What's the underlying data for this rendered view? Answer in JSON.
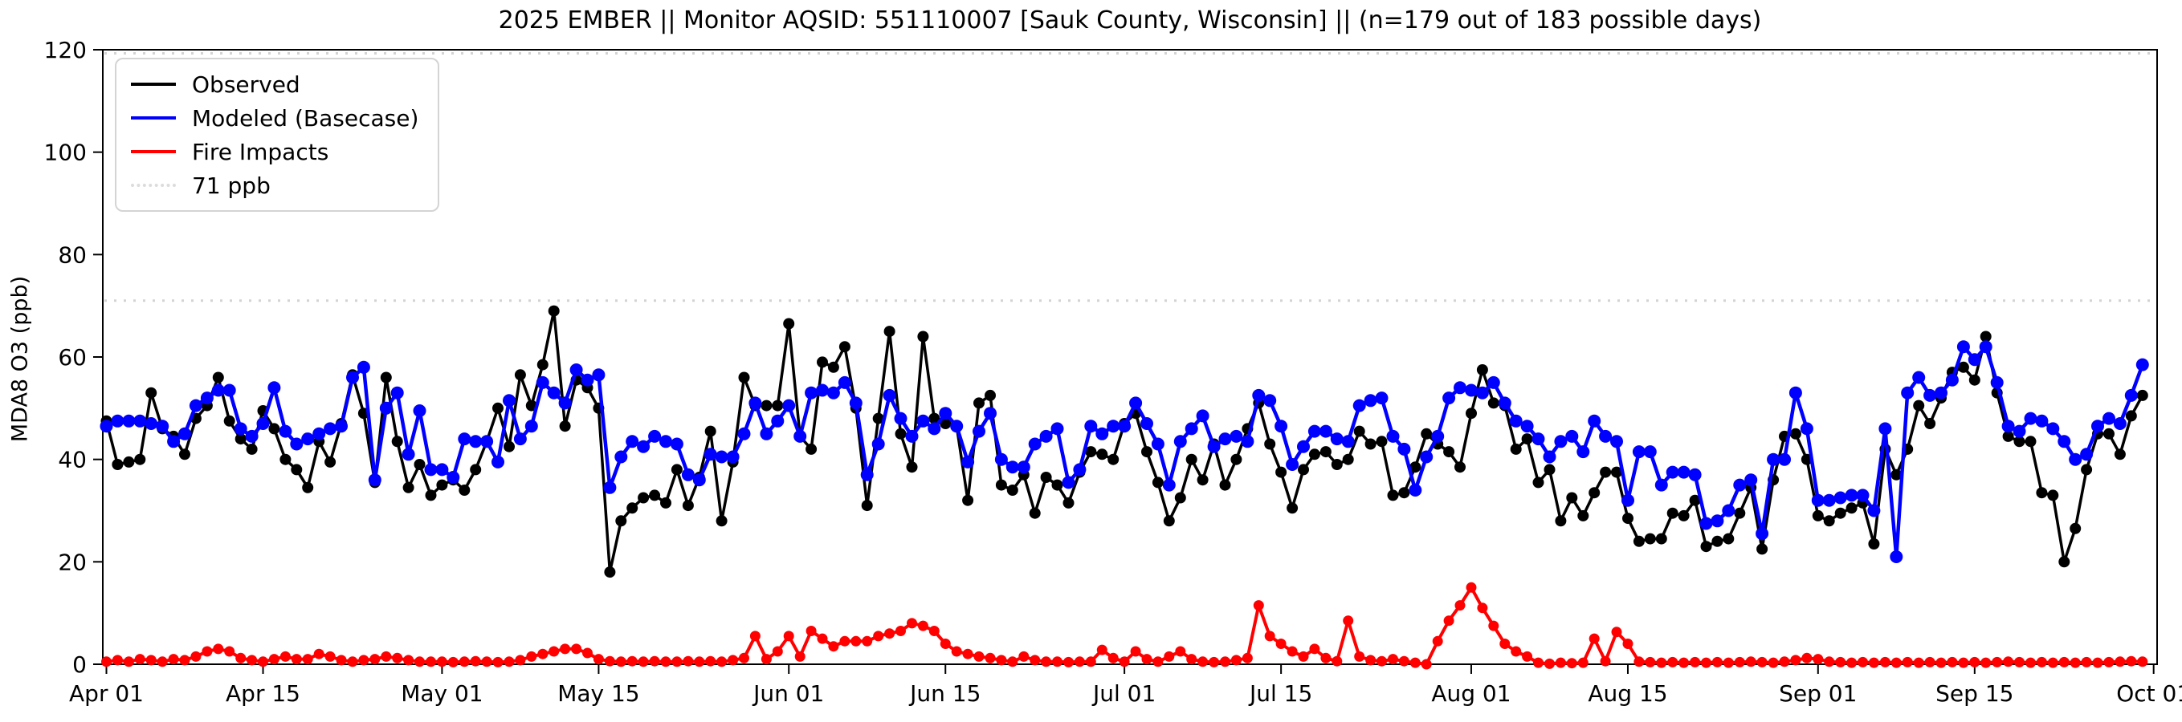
{
  "title": "2025 EMBER || Monitor AQSID: 551110007 [Sauk County, Wisconsin] || (n=179 out of 183 possible days)",
  "y_axis": {
    "label": "MDA8 O3 (ppb)",
    "ticks": [
      0,
      20,
      40,
      60,
      80,
      100,
      120
    ],
    "min": 0,
    "max": 120
  },
  "x_axis": {
    "tick_labels": [
      "Apr 01",
      "Apr 15",
      "May 01",
      "May 15",
      "Jun 01",
      "Jun 15",
      "Jul 01",
      "Jul 15",
      "Aug 01",
      "Aug 15",
      "Sep 01",
      "Sep 15",
      "Oct 01"
    ],
    "tick_days": [
      0,
      14,
      30,
      44,
      61,
      75,
      91,
      105,
      122,
      136,
      153,
      167,
      183
    ]
  },
  "legend": [
    {
      "label": "Observed",
      "color": "#000000",
      "style": "solid"
    },
    {
      "label": "Modeled (Basecase)",
      "color": "#0000ff",
      "style": "solid"
    },
    {
      "label": "Fire Impacts",
      "color": "#ff0000",
      "style": "solid"
    },
    {
      "label": "71 ppb",
      "color": "#dcdcdc",
      "style": "dotted"
    }
  ],
  "chart_data": {
    "type": "line",
    "title": "2025 EMBER || Monitor AQSID: 551110007 [Sauk County, Wisconsin] || (n=179 out of 183 possible days)",
    "xlabel": "",
    "ylabel": "MDA8 O3 (ppb)",
    "ylim": [
      0,
      120
    ],
    "x_start": "Apr 01",
    "x_end": "Sep 30",
    "n_days": 183,
    "n_observed": 179,
    "n_possible": 183,
    "grid": false,
    "legend_position": "upper-left",
    "reference_lines": [
      {
        "value": 71,
        "color": "#d3d3d3",
        "style": "dotted"
      },
      {
        "value": 120,
        "color": "#d3d3d3",
        "style": "dotted"
      }
    ],
    "series": [
      {
        "name": "Observed",
        "color": "#000000",
        "marker": "circle",
        "values": [
          47.5,
          39,
          39.5,
          40,
          53,
          46,
          44.5,
          41,
          48,
          50.5,
          56,
          47.5,
          44,
          42,
          49.5,
          46,
          40,
          38,
          34.5,
          43.5,
          39.5,
          47,
          56.5,
          49,
          35.5,
          56,
          43.5,
          34.5,
          39,
          33,
          35,
          36,
          34,
          38,
          43.5,
          50,
          42.5,
          56.5,
          50.5,
          58.5,
          69,
          46.5,
          55.5,
          54,
          50,
          18,
          28,
          30.5,
          32.5,
          33,
          31.5,
          38,
          31,
          36.5,
          45.5,
          28,
          39.5,
          56,
          50.5,
          50.5,
          50.5,
          66.5,
          44.5,
          42,
          59,
          58,
          62,
          50,
          31,
          48,
          65,
          45,
          38.5,
          64,
          48,
          47,
          46.5,
          32,
          51,
          52.5,
          35,
          34,
          37,
          29.5,
          36.5,
          35,
          31.5,
          37.5,
          41.5,
          41,
          40,
          47,
          49,
          41.5,
          35.5,
          28,
          32.5,
          40,
          36,
          43,
          35,
          40,
          46,
          51,
          43,
          37.5,
          30.5,
          38,
          41,
          41.5,
          39,
          40,
          45.5,
          43,
          43.5,
          33,
          33.5,
          38.5,
          45,
          43,
          41.5,
          38.5,
          49,
          57.5,
          51,
          50.5,
          42,
          44,
          35.5,
          38,
          28,
          32.5,
          29,
          33.5,
          37.5,
          37.5,
          28.5,
          24,
          24.5,
          24.5,
          29.5,
          29,
          32,
          23,
          24,
          24.5,
          29.5,
          34.5,
          22.5,
          36,
          44.5,
          45,
          40,
          29,
          28,
          29.5,
          30.5,
          31.5,
          23.5,
          42,
          37,
          42,
          50.5,
          47,
          52,
          57,
          58,
          55.5,
          64,
          53,
          44.5,
          43.5,
          43.5,
          33.5,
          33,
          20,
          26.5,
          38,
          45,
          45,
          41,
          48.5,
          52.5
        ]
      },
      {
        "name": "Modeled (Basecase)",
        "color": "#0000ff",
        "marker": "circle",
        "values": [
          46.5,
          47.5,
          47.5,
          47.5,
          47,
          46.5,
          43.5,
          45,
          50.5,
          52,
          53.5,
          53.5,
          46,
          44.5,
          47,
          54,
          45.5,
          43,
          44,
          45,
          46,
          46.5,
          56,
          58,
          36,
          50,
          53,
          41,
          49.5,
          38,
          38,
          36.5,
          44,
          43.5,
          43.5,
          39.5,
          51.5,
          44,
          46.5,
          55,
          53,
          51,
          57.5,
          55.5,
          56.5,
          34.5,
          40.5,
          43.5,
          42.5,
          44.5,
          43.5,
          43,
          37,
          36,
          41,
          40.5,
          40.5,
          45,
          51,
          45,
          47.5,
          50.5,
          44.5,
          53,
          53.5,
          53,
          55,
          51,
          37,
          43,
          52.5,
          48,
          44.5,
          47.5,
          46,
          49,
          46.5,
          39.5,
          45.5,
          49,
          40,
          38.5,
          38.5,
          43,
          44.5,
          46,
          35.5,
          38,
          46.5,
          45,
          46.5,
          46.5,
          51,
          47,
          43,
          35,
          43.5,
          46,
          48.5,
          42.5,
          44,
          44.5,
          43.5,
          52.5,
          51.5,
          46.5,
          39,
          42.5,
          45.5,
          45.5,
          44,
          43.5,
          50.5,
          51.5,
          52,
          44.5,
          42,
          34,
          40.5,
          44.5,
          52,
          54,
          53.5,
          53,
          55,
          51,
          47.5,
          46.5,
          44,
          40.5,
          43.5,
          44.5,
          41.5,
          47.5,
          44.5,
          43.5,
          32,
          41.5,
          41.5,
          35,
          37.5,
          37.5,
          37,
          27.5,
          28,
          30,
          35,
          36,
          25.5,
          40,
          40,
          53,
          46,
          32,
          32,
          32.5,
          33,
          33,
          30,
          46,
          21,
          53,
          56,
          52.5,
          53,
          55.5,
          62,
          59.5,
          62,
          55,
          46.5,
          45.5,
          48,
          47.5,
          46,
          43.5,
          40,
          41,
          46.5,
          48,
          47,
          52.5,
          58.5
        ]
      },
      {
        "name": "Fire Impacts",
        "color": "#ff0000",
        "marker": "circle",
        "values": [
          0.5,
          0.8,
          0.5,
          1,
          0.8,
          0.5,
          1,
          0.8,
          1.5,
          2.5,
          3,
          2.5,
          1.2,
          0.8,
          0.5,
          1,
          1.5,
          1,
          1,
          2,
          1.5,
          0.8,
          0.5,
          0.8,
          1,
          1.5,
          1.2,
          0.8,
          0.5,
          0.5,
          0.5,
          0.4,
          0.5,
          0.6,
          0.5,
          0.4,
          0.5,
          0.8,
          1.5,
          2,
          2.5,
          3,
          3,
          2.2,
          1,
          0.6,
          0.5,
          0.6,
          0.5,
          0.6,
          0.5,
          0.5,
          0.6,
          0.5,
          0.6,
          0.5,
          0.8,
          1.2,
          5.5,
          1,
          2.5,
          5.5,
          1.5,
          6.5,
          5,
          3.5,
          4.5,
          4.5,
          4.5,
          5.5,
          6,
          6.5,
          8,
          7.5,
          6.5,
          4,
          2.5,
          2,
          1.5,
          1.2,
          0.8,
          0.5,
          1.5,
          0.8,
          0.5,
          0.5,
          0.4,
          0.5,
          0.5,
          2.8,
          1.2,
          0.5,
          2.5,
          1,
          0.5,
          1.5,
          2.5,
          1,
          0.5,
          0.4,
          0.5,
          0.8,
          1.2,
          11.5,
          5.5,
          4,
          2.5,
          1.5,
          3,
          1.2,
          0.6,
          8.5,
          1.5,
          0.8,
          0.6,
          1,
          0.6,
          0.3,
          0,
          4.5,
          8.5,
          11.5,
          15,
          11,
          7.5,
          4,
          2.5,
          1.5,
          0.3,
          0.1,
          0.3,
          0.2,
          0.3,
          5,
          0.6,
          6.3,
          4,
          0.5,
          0.4,
          0.3,
          0.4,
          0.3,
          0.4,
          0.3,
          0.4,
          0.3,
          0.4,
          0.5,
          0.4,
          0.3,
          0.5,
          0.8,
          1.2,
          1,
          0.5,
          0.4,
          0.3,
          0.4,
          0.3,
          0.4,
          0.3,
          0.4,
          0.3,
          0.4,
          0.3,
          0.4,
          0.3,
          0.4,
          0.3,
          0.4,
          0.5,
          0.4,
          0.3,
          0.4,
          0.3,
          0.4,
          0.3,
          0.4,
          0.3,
          0.4,
          0.5,
          0.6,
          0.5
        ]
      }
    ]
  }
}
